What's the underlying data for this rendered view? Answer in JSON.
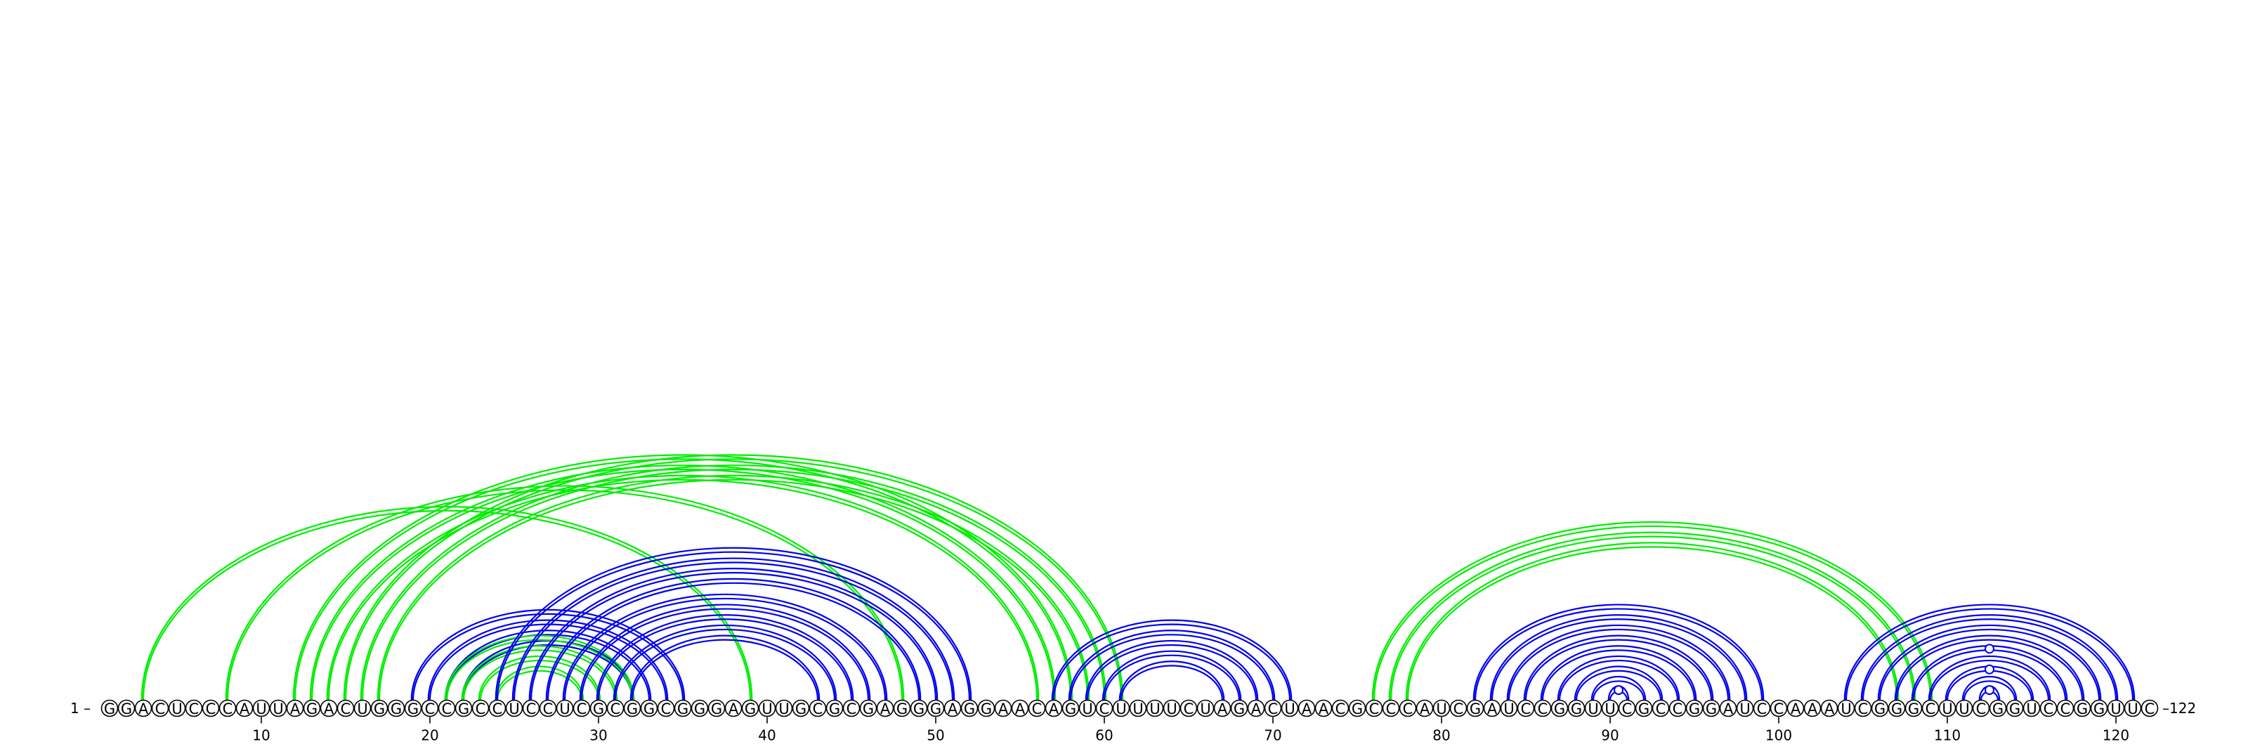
{
  "sequence": "GGACUCCCAUUAGACUGGGCCGCCUCCUCGCGGCGGGAGUUGCGCGAGGGAGGAACAGUCUUUUCUAGACUAACGCCCAUCGAUCCGGUUCGCCGGAUCCAAAUCGGGCUUCGGUCCGGUUC",
  "start_label": "1 –",
  "end_label": "–122",
  "ticks": [
    10,
    20,
    30,
    40,
    50,
    60,
    70,
    80,
    90,
    100,
    110,
    120
  ],
  "colors": {
    "blue": "#0000ee",
    "green": "#00ee00"
  },
  "arc_groups": [
    {
      "color": "green",
      "pairs": [
        [
          3,
          39
        ]
      ]
    },
    {
      "color": "green",
      "pairs": [
        [
          8,
          48
        ]
      ]
    },
    {
      "color": "green",
      "pairs": [
        [
          12,
          58
        ],
        [
          13,
          57
        ],
        [
          14,
          56
        ],
        [
          15,
          61
        ],
        [
          16,
          60
        ],
        [
          17,
          59
        ]
      ]
    },
    {
      "color": "blue",
      "pairs": [
        [
          19,
          35
        ],
        [
          20,
          34
        ],
        [
          21,
          33
        ],
        [
          22,
          32
        ]
      ]
    },
    {
      "color": "green",
      "pairs": [
        [
          21,
          32
        ],
        [
          22,
          31
        ],
        [
          23,
          30
        ],
        [
          24,
          29
        ]
      ]
    },
    {
      "color": "blue",
      "pairs": [
        [
          24,
          52
        ],
        [
          25,
          51
        ],
        [
          26,
          50
        ],
        [
          27,
          49
        ],
        [
          28,
          47
        ],
        [
          29,
          46
        ],
        [
          30,
          45
        ],
        [
          31,
          44
        ],
        [
          32,
          43
        ]
      ]
    },
    {
      "color": "blue",
      "pairs": [
        [
          57,
          71
        ],
        [
          58,
          70
        ],
        [
          59,
          69
        ],
        [
          60,
          68
        ],
        [
          61,
          67
        ]
      ]
    },
    {
      "color": "green",
      "pairs": [
        [
          76,
          109
        ],
        [
          77,
          108
        ],
        [
          78,
          107
        ]
      ]
    },
    {
      "color": "blue",
      "pairs": [
        [
          82,
          99
        ],
        [
          83,
          98
        ],
        [
          84,
          97
        ],
        [
          85,
          96
        ],
        [
          86,
          95
        ],
        [
          87,
          94
        ],
        [
          88,
          93
        ],
        [
          89,
          92
        ],
        [
          90,
          91
        ]
      ]
    },
    {
      "color": "blue",
      "pairs": [
        [
          104,
          121
        ],
        [
          105,
          120
        ],
        [
          106,
          119
        ],
        [
          107,
          118
        ],
        [
          108,
          117
        ],
        [
          109,
          116
        ],
        [
          110,
          115
        ],
        [
          111,
          114
        ],
        [
          112,
          113
        ]
      ]
    }
  ],
  "dotted_arcs": [
    [
      90,
      91
    ],
    [
      112,
      113
    ],
    [
      110,
      115
    ],
    [
      108,
      117
    ]
  ]
}
